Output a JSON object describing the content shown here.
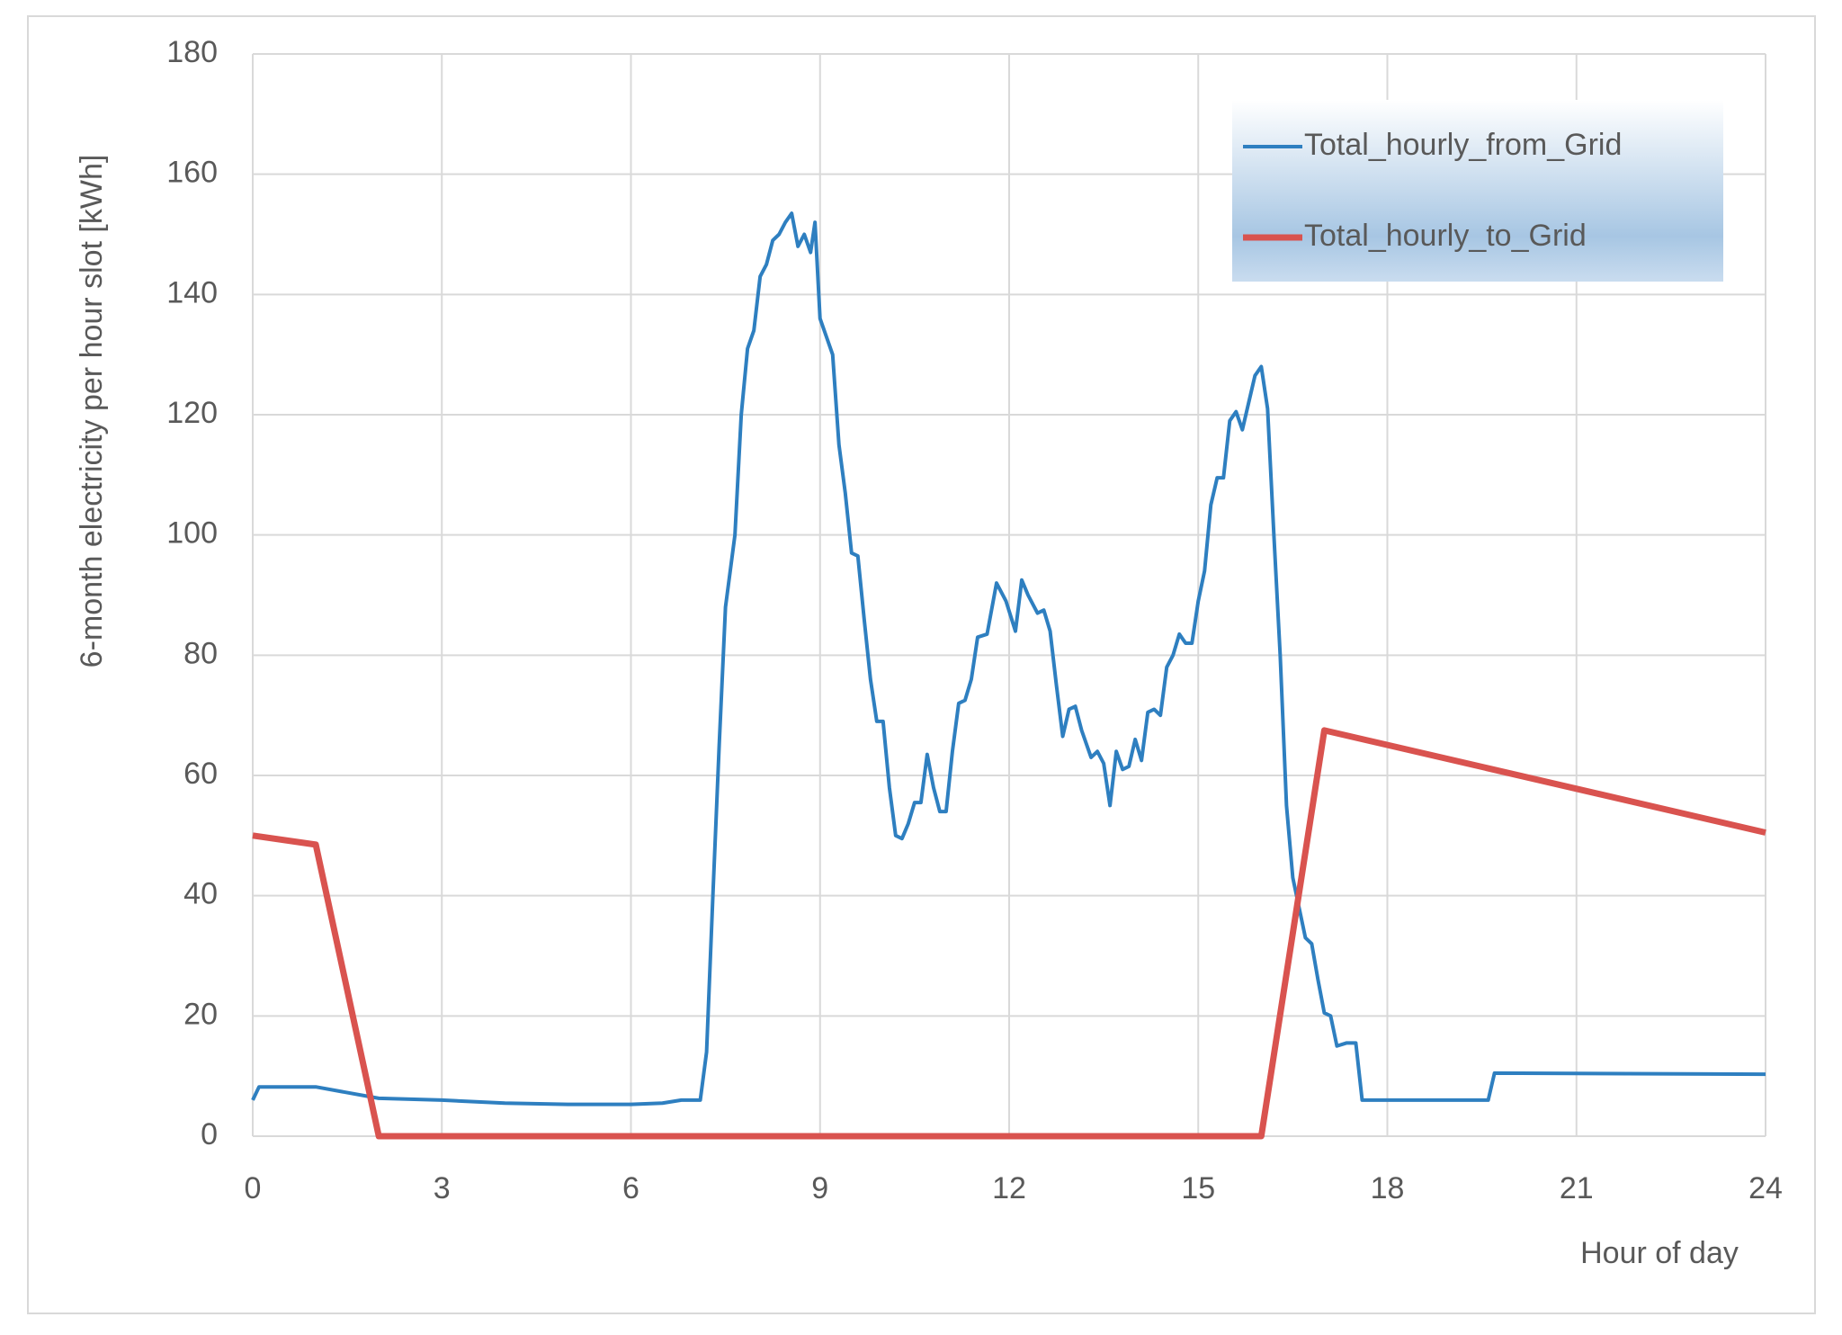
{
  "chart_data": {
    "type": "line",
    "x_label": "Hour of day",
    "y_label": "6-month electricity per hour slot [kWh]",
    "xlim": [
      0,
      24
    ],
    "xticks": [
      0,
      3,
      6,
      9,
      12,
      15,
      18,
      21,
      24
    ],
    "ylim": [
      0,
      180
    ],
    "yticks": [
      0,
      20,
      40,
      60,
      80,
      100,
      120,
      140,
      160,
      180
    ],
    "grid": true,
    "legend": "top-right",
    "series": [
      {
        "name": "Total_hourly_from_Grid",
        "color": "#2e7fc0",
        "x": [
          0,
          0.1,
          1.0,
          2,
          3,
          4,
          5,
          6,
          6.5,
          6.8,
          7.1,
          7.2,
          7.3,
          7.4,
          7.5,
          7.65,
          7.75,
          7.85,
          7.95,
          8.05,
          8.15,
          8.25,
          8.35,
          8.45,
          8.55,
          8.65,
          8.75,
          8.85,
          8.92,
          9.0,
          9.1,
          9.2,
          9.3,
          9.4,
          9.5,
          9.6,
          9.7,
          9.8,
          9.9,
          10.0,
          10.1,
          10.2,
          10.3,
          10.4,
          10.5,
          10.6,
          10.7,
          10.8,
          10.9,
          11.0,
          11.1,
          11.2,
          11.3,
          11.4,
          11.5,
          11.65,
          11.8,
          11.95,
          12.1,
          12.2,
          12.3,
          12.45,
          12.55,
          12.65,
          12.75,
          12.85,
          12.95,
          13.05,
          13.15,
          13.3,
          13.4,
          13.5,
          13.6,
          13.7,
          13.8,
          13.9,
          14.0,
          14.1,
          14.2,
          14.3,
          14.4,
          14.5,
          14.6,
          14.7,
          14.8,
          14.9,
          15.0,
          15.1,
          15.2,
          15.3,
          15.4,
          15.5,
          15.6,
          15.7,
          15.8,
          15.9,
          16.0,
          16.1,
          16.2,
          16.3,
          16.4,
          16.5,
          16.6,
          16.7,
          16.8,
          16.9,
          17.0,
          17.1,
          17.2,
          17.35,
          17.5,
          17.6,
          19.6,
          19.7,
          24
        ],
        "values": [
          6,
          8.2,
          8.2,
          6.3,
          6,
          5.5,
          5.3,
          5.3,
          5.5,
          6,
          6,
          14,
          40,
          65,
          88,
          100,
          120,
          131,
          134,
          143,
          145,
          149,
          150,
          152,
          153.5,
          148,
          150,
          147,
          152,
          136,
          133,
          130,
          115,
          107,
          97,
          96.5,
          86,
          76,
          69,
          69,
          58,
          50,
          49.5,
          52,
          55.5,
          55.5,
          63.5,
          58,
          54,
          54,
          64,
          72,
          72.5,
          76,
          83,
          83.5,
          92,
          89,
          84,
          92.5,
          90,
          87,
          87.5,
          84,
          75,
          66.5,
          71,
          71.5,
          67.5,
          63,
          64,
          62,
          55,
          64,
          61,
          61.5,
          66,
          62.5,
          70.5,
          71,
          70,
          78,
          80,
          83.5,
          82,
          82,
          89,
          94,
          105,
          109.5,
          109.5,
          119,
          120.5,
          117.5,
          122,
          126.5,
          128,
          121,
          100,
          80,
          55,
          43,
          38,
          33,
          32,
          26,
          20.5,
          20,
          15,
          15.5,
          15.5,
          6,
          6,
          10.5,
          10.3
        ]
      },
      {
        "name": "Total_hourly_to_Grid",
        "color": "#d9534f",
        "x": [
          0,
          1.0,
          2,
          16,
          17,
          24
        ],
        "values": [
          50,
          48.5,
          0,
          0,
          67.5,
          50.5
        ]
      }
    ]
  }
}
